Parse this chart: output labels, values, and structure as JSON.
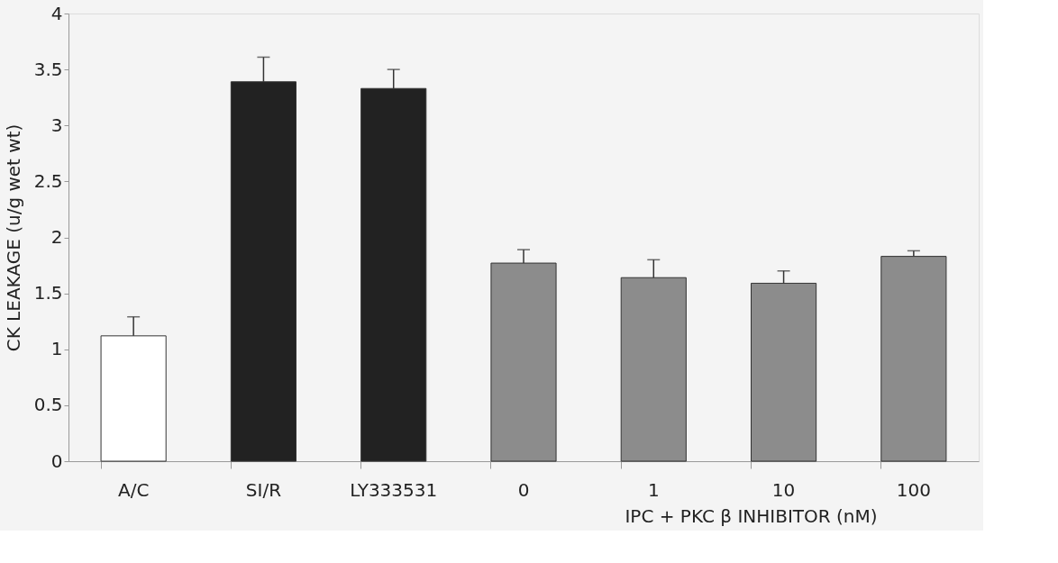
{
  "chart_data": {
    "type": "bar",
    "ylabel": "CK LEAKAGE (u/g wet wt)",
    "categories": [
      "A/C",
      "SI/R",
      "LY333531",
      "0",
      "1",
      "10",
      "100"
    ],
    "values": [
      1.12,
      3.39,
      3.33,
      1.77,
      1.64,
      1.59,
      1.83
    ],
    "colors": [
      "#ffffff",
      "#222222",
      "#222222",
      "#8c8c8c",
      "#8c8c8c",
      "#8c8c8c",
      "#8c8c8c"
    ],
    "errors": [
      [
        1.12,
        1.29
      ],
      [
        3.39,
        3.61
      ],
      [
        3.33,
        3.5
      ],
      [
        1.77,
        1.89
      ],
      [
        1.64,
        1.8
      ],
      [
        1.59,
        1.7
      ],
      [
        1.83,
        1.88
      ]
    ],
    "ylim": [
      0,
      4
    ],
    "yticks": [
      0,
      0.5,
      1,
      1.5,
      2,
      2.5,
      3,
      3.5,
      4
    ],
    "annotations": [
      "IPC + PKC β INHIBITOR (nM)"
    ],
    "grid": false
  }
}
